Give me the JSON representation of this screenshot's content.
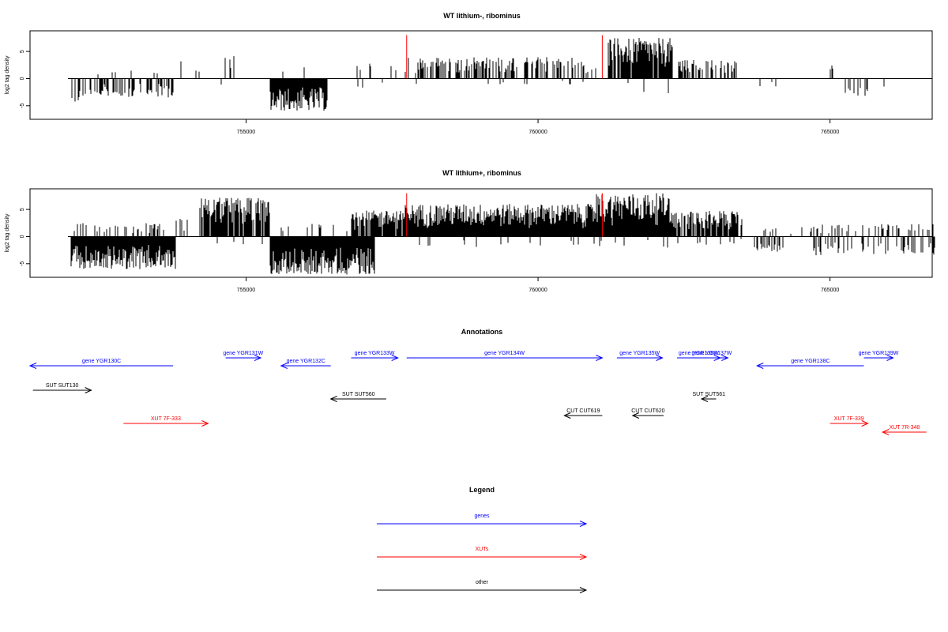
{
  "chart_data": [
    {
      "type": "bar",
      "title": "WT lithium-, ribominus",
      "ylabel": "log2 tag density",
      "xlabel": "",
      "xlim": [
        751300,
        766750
      ],
      "ylim": [
        -7.5,
        8.8
      ],
      "xticks": [
        755000,
        760000,
        765000
      ],
      "xtick_labels": [
        "755000",
        "760000",
        "765000"
      ],
      "yticks": [
        -5,
        0,
        5
      ],
      "ytick_labels": [
        "-5",
        "0",
        "5"
      ],
      "baseline": 0,
      "data_span": [
        751950,
        766850
      ],
      "markers": {
        "color": "#ff0000",
        "x": [
          757750,
          761100
        ],
        "height": 8.0
      },
      "regions": [
        {
          "x": [
            752000,
            752350
          ],
          "sign": -1,
          "density": 0.35,
          "max": 4.5
        },
        {
          "x": [
            752350,
            753800
          ],
          "sign": -1,
          "density": 0.45,
          "max": 3.5
        },
        {
          "x": [
            752400,
            753600
          ],
          "sign": 1,
          "density": 0.07,
          "max": 1.8
        },
        {
          "x": [
            753800,
            754200
          ],
          "sign": 1,
          "density": 0.06,
          "max": 3.2
        },
        {
          "x": [
            754500,
            754850
          ],
          "sign": 1,
          "density": 0.2,
          "max": 4.3
        },
        {
          "x": [
            754500,
            754800
          ],
          "sign": -1,
          "density": 0.05,
          "max": 1.2
        },
        {
          "x": [
            755400,
            756400
          ],
          "sign": -1,
          "density": 1.0,
          "max": 6.0
        },
        {
          "x": [
            755500,
            756300
          ],
          "sign": 1,
          "density": 0.05,
          "max": 2.2
        },
        {
          "x": [
            756900,
            757600
          ],
          "sign": 1,
          "density": 0.15,
          "max": 2.8
        },
        {
          "x": [
            756900,
            757500
          ],
          "sign": -1,
          "density": 0.09,
          "max": 2.0
        },
        {
          "x": [
            757700,
            761000
          ],
          "sign": 1,
          "density": 0.45,
          "max": 4.0
        },
        {
          "x": [
            757700,
            761000
          ],
          "sign": -1,
          "density": 0.03,
          "max": 1.3
        },
        {
          "x": [
            761200,
            762300
          ],
          "sign": 1,
          "density": 0.9,
          "max": 7.5
        },
        {
          "x": [
            761200,
            762300
          ],
          "sign": -1,
          "density": 0.04,
          "max": 2.8
        },
        {
          "x": [
            762400,
            763400
          ],
          "sign": 1,
          "density": 0.45,
          "max": 3.6
        },
        {
          "x": [
            763800,
            764100
          ],
          "sign": -1,
          "density": 0.05,
          "max": 1.5
        },
        {
          "x": [
            765000,
            765500
          ],
          "sign": 1,
          "density": 0.07,
          "max": 2.6
        },
        {
          "x": [
            765150,
            765700
          ],
          "sign": -1,
          "density": 0.12,
          "max": 3.2
        },
        {
          "x": [
            765900,
            766000
          ],
          "sign": -1,
          "density": 0.15,
          "max": 3.2
        }
      ]
    },
    {
      "type": "bar",
      "title": "WT lithium+, ribominus",
      "ylabel": "log2 tag density",
      "xlabel": "",
      "xlim": [
        751300,
        766750
      ],
      "ylim": [
        -7.5,
        8.8
      ],
      "xticks": [
        755000,
        760000,
        765000
      ],
      "xtick_labels": [
        "755000",
        "760000",
        "765000"
      ],
      "yticks": [
        -5,
        0,
        5
      ],
      "ytick_labels": [
        "-5",
        "0",
        "5"
      ],
      "baseline": 0,
      "data_span": [
        751950,
        766850
      ],
      "markers": {
        "color": "#ff0000",
        "x": [
          757750,
          761100
        ],
        "height": 8.0
      },
      "regions": [
        {
          "x": [
            752000,
            753800
          ],
          "sign": -1,
          "density": 1.0,
          "max": 6.0
        },
        {
          "x": [
            752000,
            753700
          ],
          "sign": 1,
          "density": 0.25,
          "max": 2.5
        },
        {
          "x": [
            753800,
            754000
          ],
          "sign": 1,
          "density": 0.2,
          "max": 3.5
        },
        {
          "x": [
            754200,
            755400
          ],
          "sign": 1,
          "density": 0.85,
          "max": 7.2
        },
        {
          "x": [
            754200,
            755300
          ],
          "sign": -1,
          "density": 0.1,
          "max": 1.5
        },
        {
          "x": [
            755400,
            757200
          ],
          "sign": -1,
          "density": 1.0,
          "max": 7.0
        },
        {
          "x": [
            755500,
            757100
          ],
          "sign": 1,
          "density": 0.15,
          "max": 2.5
        },
        {
          "x": [
            756800,
            757700
          ],
          "sign": 1,
          "density": 0.8,
          "max": 4.8
        },
        {
          "x": [
            757700,
            761000
          ],
          "sign": 1,
          "density": 1.0,
          "max": 6.0
        },
        {
          "x": [
            757700,
            761000
          ],
          "sign": -1,
          "density": 0.06,
          "max": 2.0
        },
        {
          "x": [
            761000,
            762300
          ],
          "sign": 1,
          "density": 1.0,
          "max": 8.0
        },
        {
          "x": [
            761000,
            762300
          ],
          "sign": -1,
          "density": 0.06,
          "max": 2.5
        },
        {
          "x": [
            762300,
            763500
          ],
          "sign": 1,
          "density": 0.85,
          "max": 4.8
        },
        {
          "x": [
            762300,
            763500
          ],
          "sign": -1,
          "density": 0.05,
          "max": 1.5
        },
        {
          "x": [
            763500,
            764800
          ],
          "sign": 1,
          "density": 0.1,
          "max": 2.0
        },
        {
          "x": [
            763700,
            764200
          ],
          "sign": -1,
          "density": 0.4,
          "max": 2.8
        },
        {
          "x": [
            764700,
            766800
          ],
          "sign": -1,
          "density": 0.3,
          "max": 3.5
        },
        {
          "x": [
            764800,
            766800
          ],
          "sign": 1,
          "density": 0.2,
          "max": 2.3
        }
      ]
    }
  ],
  "annotations": {
    "title": "Annotations",
    "items": [
      {
        "label": "gene YGR130C",
        "type": "gene",
        "start": 751300,
        "end": 753750,
        "direction": "left",
        "row": 1
      },
      {
        "label": "gene YGR131W",
        "type": "gene",
        "start": 754650,
        "end": 755250,
        "direction": "right",
        "row": 0
      },
      {
        "label": "gene YGR132C",
        "type": "gene",
        "start": 755600,
        "end": 756450,
        "direction": "left",
        "row": 1
      },
      {
        "label": "gene YGR133W",
        "type": "gene",
        "start": 756800,
        "end": 757600,
        "direction": "right",
        "row": 0
      },
      {
        "label": "gene YGR134W",
        "type": "gene",
        "start": 757750,
        "end": 761100,
        "direction": "right",
        "row": 0
      },
      {
        "label": "gene YGR135W",
        "type": "gene",
        "start": 761350,
        "end": 762130,
        "direction": "right",
        "row": 0
      },
      {
        "label": "gene YGR136W",
        "type": "gene",
        "start": 762380,
        "end": 763120,
        "direction": "right",
        "row": 0
      },
      {
        "label": "gene YGR137W",
        "type": "gene",
        "start": 762700,
        "end": 763250,
        "direction": "right",
        "row": 0
      },
      {
        "label": "gene YGR138C",
        "type": "gene",
        "start": 763750,
        "end": 765580,
        "direction": "left",
        "row": 1
      },
      {
        "label": "gene YGR139W",
        "type": "gene",
        "start": 765580,
        "end": 766080,
        "direction": "right",
        "row": 0
      },
      {
        "label": "SUT SUT130",
        "type": "other",
        "start": 751350,
        "end": 752350,
        "direction": "right",
        "row": 2
      },
      {
        "label": "SUT SUT560",
        "type": "other",
        "start": 756450,
        "end": 757400,
        "direction": "left",
        "row": 3
      },
      {
        "label": "SUT SUT561",
        "type": "other",
        "start": 762800,
        "end": 763050,
        "direction": "left",
        "row": 3
      },
      {
        "label": "CUT CUT619",
        "type": "other",
        "start": 760450,
        "end": 761100,
        "direction": "left",
        "row": 4
      },
      {
        "label": "CUT CUT620",
        "type": "other",
        "start": 761620,
        "end": 762150,
        "direction": "left",
        "row": 4
      },
      {
        "label": "XUT 7F-333",
        "type": "xut",
        "start": 752900,
        "end": 754350,
        "direction": "right",
        "row": 5
      },
      {
        "label": "XUT 7F-339",
        "type": "xut",
        "start": 765000,
        "end": 765650,
        "direction": "right",
        "row": 5
      },
      {
        "label": "XUT 7R-348",
        "type": "xut",
        "start": 765900,
        "end": 766650,
        "direction": "left",
        "row": 6
      }
    ]
  },
  "legend": {
    "title": "Legend",
    "entries": [
      {
        "label": "genes",
        "color": "#0000ff"
      },
      {
        "label": "XUTs",
        "color": "#ff0000"
      },
      {
        "label": "other",
        "color": "#000000"
      }
    ]
  },
  "colors": {
    "gene": "#0000ff",
    "xut": "#ff0000",
    "other": "#000000",
    "marker": "#ff0000"
  }
}
